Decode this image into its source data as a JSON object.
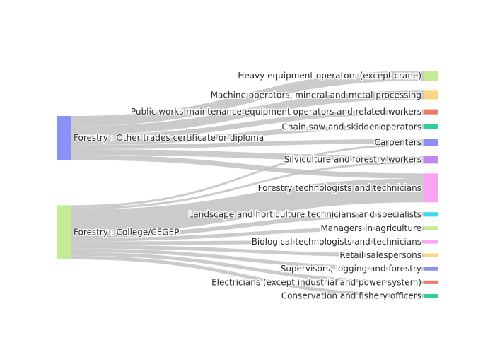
{
  "chart_data": {
    "type": "sankey",
    "sources": [
      {
        "label": "Forestry : Other trades certificate or diploma",
        "color": "#8b8ff8"
      },
      {
        "label": "Forestry : College/CEGEP",
        "color": "#c6eb97"
      }
    ],
    "targets": [
      {
        "label": "Heavy equipment operators (except crane)",
        "color": "#c6eb97"
      },
      {
        "label": "Machine operators, mineral and metal processing",
        "color": "#fdd682"
      },
      {
        "label": "Public works maintenance equipment operators and related workers",
        "color": "#ec7b6a"
      },
      {
        "label": "Chain saw and skidder operators",
        "color": "#2ed19e"
      },
      {
        "label": "Carpenters",
        "color": "#8b8ff8"
      },
      {
        "label": "Silviculture and forestry workers",
        "color": "#c086f6"
      },
      {
        "label": "Forestry technologists and technicians",
        "color": "#fda3f7"
      },
      {
        "label": "Landscape and horticulture technicians and specialists",
        "color": "#3fd9f0"
      },
      {
        "label": "Managers in agriculture",
        "color": "#c6eb97"
      },
      {
        "label": "Biological technologists and technicians",
        "color": "#fda3f7"
      },
      {
        "label": "Retail salespersons",
        "color": "#fdd682"
      },
      {
        "label": "Supervisors, logging and forestry",
        "color": "#8b8ff8"
      },
      {
        "label": "Electricians (except industrial and power system)",
        "color": "#ec7b6a"
      },
      {
        "label": "Conservation and fishery officers",
        "color": "#2ed19e"
      }
    ],
    "links": [
      {
        "source": 0,
        "target": 0,
        "value": 14
      },
      {
        "source": 0,
        "target": 1,
        "value": 12
      },
      {
        "source": 0,
        "target": 2,
        "value": 7
      },
      {
        "source": 0,
        "target": 3,
        "value": 7
      },
      {
        "source": 0,
        "target": 4,
        "value": 6
      },
      {
        "source": 0,
        "target": 5,
        "value": 8
      },
      {
        "source": 0,
        "target": 6,
        "value": 7
      },
      {
        "source": 1,
        "target": 4,
        "value": 3
      },
      {
        "source": 1,
        "target": 5,
        "value": 3
      },
      {
        "source": 1,
        "target": 6,
        "value": 33
      },
      {
        "source": 1,
        "target": 7,
        "value": 6
      },
      {
        "source": 1,
        "target": 8,
        "value": 5
      },
      {
        "source": 1,
        "target": 9,
        "value": 5
      },
      {
        "source": 1,
        "target": 10,
        "value": 5
      },
      {
        "source": 1,
        "target": 11,
        "value": 5
      },
      {
        "source": 1,
        "target": 12,
        "value": 5
      },
      {
        "source": 1,
        "target": 13,
        "value": 5
      }
    ]
  }
}
